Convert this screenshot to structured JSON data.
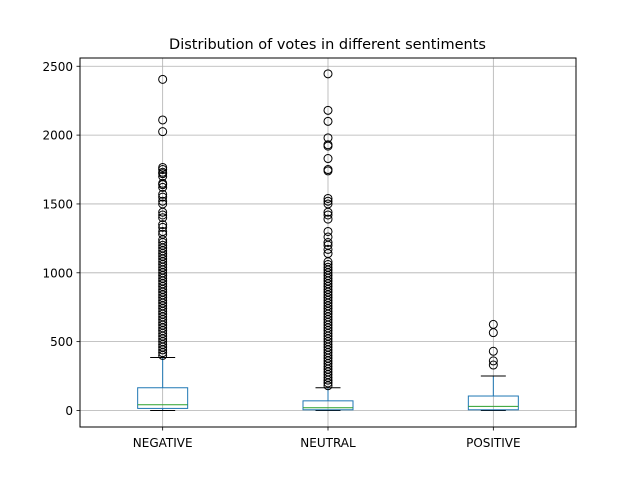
{
  "chart_data": {
    "type": "box",
    "title": "Distribution of votes in different sentiments",
    "xlabel": "",
    "ylabel": "",
    "ylim": [
      -120,
      2560
    ],
    "yticks": [
      0,
      500,
      1000,
      1500,
      2000,
      2500
    ],
    "grid": true,
    "legend": "none",
    "colors": {
      "box": "#1f77b4",
      "median": "#2ca02c",
      "whisker": "#1f77b4",
      "flier": "#000000",
      "grid": "#b0b0b0"
    },
    "categories": [
      "NEGATIVE",
      "NEUTRAL",
      "POSITIVE"
    ],
    "boxes": [
      {
        "category": "NEGATIVE",
        "whislo": 0,
        "q1": 15,
        "median": 42,
        "q3": 165,
        "whishi": 385,
        "fliers": [
          2405,
          2110,
          2025,
          1765,
          1750,
          1730,
          1720,
          1700,
          1650,
          1640,
          1620,
          1570,
          1550,
          1520,
          1500,
          1440,
          1420,
          1400,
          1350,
          1330,
          1300,
          1280,
          1240,
          1220,
          1200,
          1180,
          1160,
          1140,
          1120,
          1100,
          1080,
          1060,
          1040,
          1020,
          1000,
          980,
          960,
          940,
          920,
          900,
          880,
          860,
          840,
          820,
          800,
          780,
          760,
          740,
          720,
          700,
          680,
          660,
          640,
          620,
          600,
          580,
          560,
          540,
          520,
          500,
          480,
          460,
          440,
          420,
          400
        ]
      },
      {
        "category": "NEUTRAL",
        "whislo": 0,
        "q1": 5,
        "median": 20,
        "q3": 70,
        "whishi": 165,
        "fliers": [
          2445,
          2180,
          2100,
          1980,
          1930,
          1920,
          1830,
          1750,
          1740,
          1540,
          1520,
          1500,
          1440,
          1420,
          1390,
          1300,
          1260,
          1220,
          1200,
          1170,
          1140,
          1080,
          1060,
          1040,
          1020,
          1000,
          980,
          960,
          940,
          920,
          900,
          880,
          860,
          840,
          820,
          800,
          780,
          760,
          740,
          720,
          700,
          680,
          660,
          640,
          620,
          600,
          580,
          560,
          540,
          520,
          500,
          480,
          460,
          440,
          420,
          400,
          380,
          360,
          340,
          320,
          300,
          280,
          260,
          240,
          220,
          200,
          180
        ]
      },
      {
        "category": "POSITIVE",
        "whislo": 0,
        "q1": 5,
        "median": 30,
        "q3": 105,
        "whishi": 250,
        "fliers": [
          625,
          565,
          430,
          360,
          330
        ]
      }
    ]
  }
}
